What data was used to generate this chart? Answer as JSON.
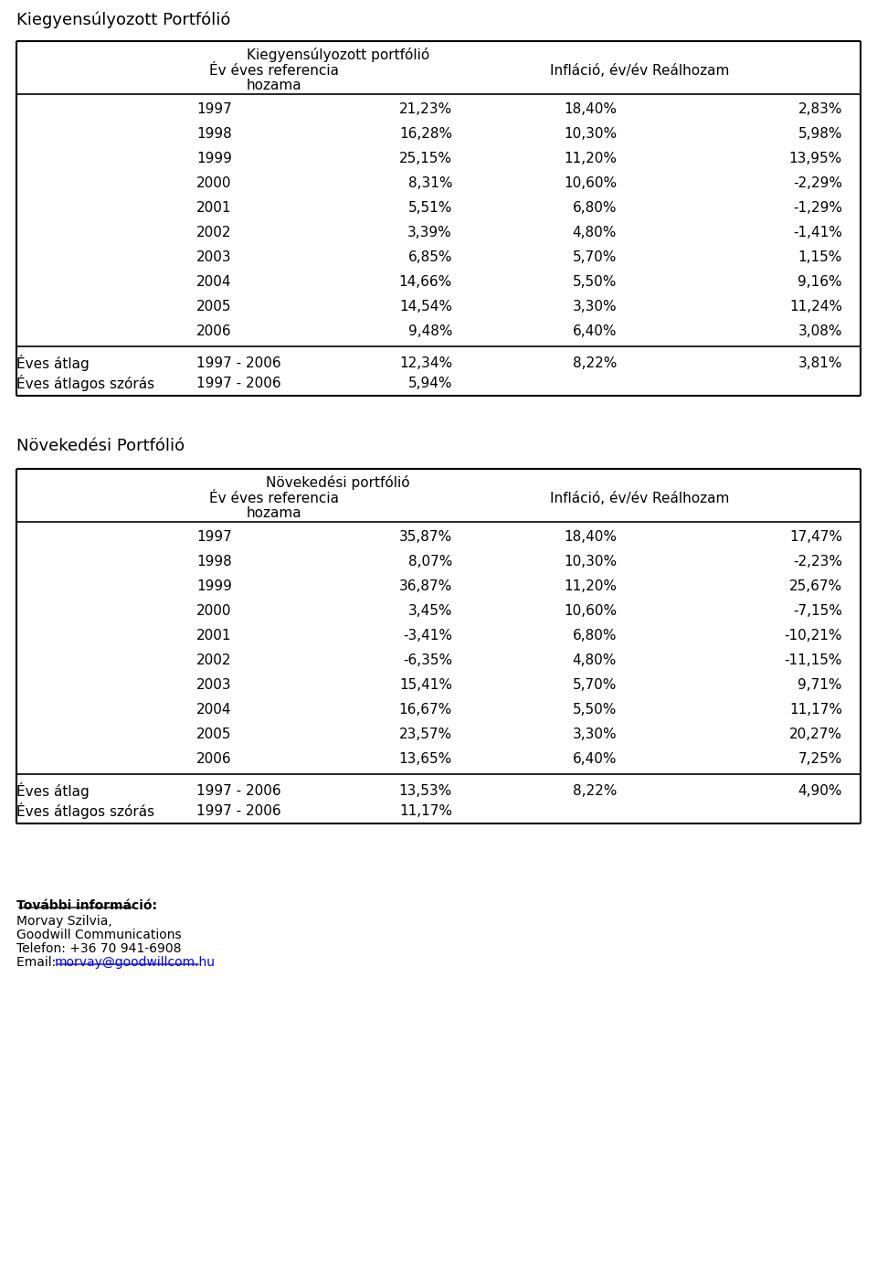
{
  "page_title1": "Kiegyensúlyozott Portfólió",
  "page_title2": "Növekedési Portfólió",
  "table1_header1": "Kiegyensúlyozott portfólió",
  "table1_header2a": "Év éves referencia",
  "table1_header2b": "Infláció, év/év Reálhozam",
  "table1_header3": "hozama",
  "table1_rows": [
    [
      "1997",
      "21,23%",
      "18,40%",
      "2,83%"
    ],
    [
      "1998",
      "16,28%",
      "10,30%",
      "5,98%"
    ],
    [
      "1999",
      "25,15%",
      "11,20%",
      "13,95%"
    ],
    [
      "2000",
      "8,31%",
      "10,60%",
      "-2,29%"
    ],
    [
      "2001",
      "5,51%",
      "6,80%",
      "-1,29%"
    ],
    [
      "2002",
      "3,39%",
      "4,80%",
      "-1,41%"
    ],
    [
      "2003",
      "6,85%",
      "5,70%",
      "1,15%"
    ],
    [
      "2004",
      "14,66%",
      "5,50%",
      "9,16%"
    ],
    [
      "2005",
      "14,54%",
      "3,30%",
      "11,24%"
    ],
    [
      "2006",
      "9,48%",
      "6,40%",
      "3,08%"
    ]
  ],
  "table1_avg_label": "Éves átlag",
  "table1_avg_period": "1997 - 2006",
  "table1_avg_vals": [
    "12,34%",
    "8,22%",
    "3,81%"
  ],
  "table1_std_label": "Éves átlagos szórás",
  "table1_std_period": "1997 - 2006",
  "table1_std_val": "5,94%",
  "table2_header1": "Növekedési portfólió",
  "table2_header2a": "Év éves referencia",
  "table2_header2b": "Infláció, év/év Reálhozam",
  "table2_header3": "hozama",
  "table2_rows": [
    [
      "1997",
      "35,87%",
      "18,40%",
      "17,47%"
    ],
    [
      "1998",
      "8,07%",
      "10,30%",
      "-2,23%"
    ],
    [
      "1999",
      "36,87%",
      "11,20%",
      "25,67%"
    ],
    [
      "2000",
      "3,45%",
      "10,60%",
      "-7,15%"
    ],
    [
      "2001",
      "-3,41%",
      "6,80%",
      "-10,21%"
    ],
    [
      "2002",
      "-6,35%",
      "4,80%",
      "-11,15%"
    ],
    [
      "2003",
      "15,41%",
      "5,70%",
      "9,71%"
    ],
    [
      "2004",
      "16,67%",
      "5,50%",
      "11,17%"
    ],
    [
      "2005",
      "23,57%",
      "3,30%",
      "20,27%"
    ],
    [
      "2006",
      "13,65%",
      "6,40%",
      "7,25%"
    ]
  ],
  "table2_avg_label": "Éves átlag",
  "table2_avg_period": "1997 - 2006",
  "table2_avg_vals": [
    "13,53%",
    "8,22%",
    "4,90%"
  ],
  "table2_std_label": "Éves átlagos szórás",
  "table2_std_period": "1997 - 2006",
  "table2_std_val": "11,17%",
  "footer_bold": "További információ:",
  "footer_line1": "Morvay Szilvia,",
  "footer_line2": "Goodwill Communications",
  "footer_line3": "Telefon: +36 70 941-6908",
  "footer_line4": "Email: morvay@goodwillcom.hu",
  "bg_color": "#ffffff",
  "text_color": "#000000",
  "border_color": "#000000",
  "font_size_title": 13,
  "font_size_table_header": 11,
  "font_size_table_data": 11,
  "font_size_footer": 10
}
